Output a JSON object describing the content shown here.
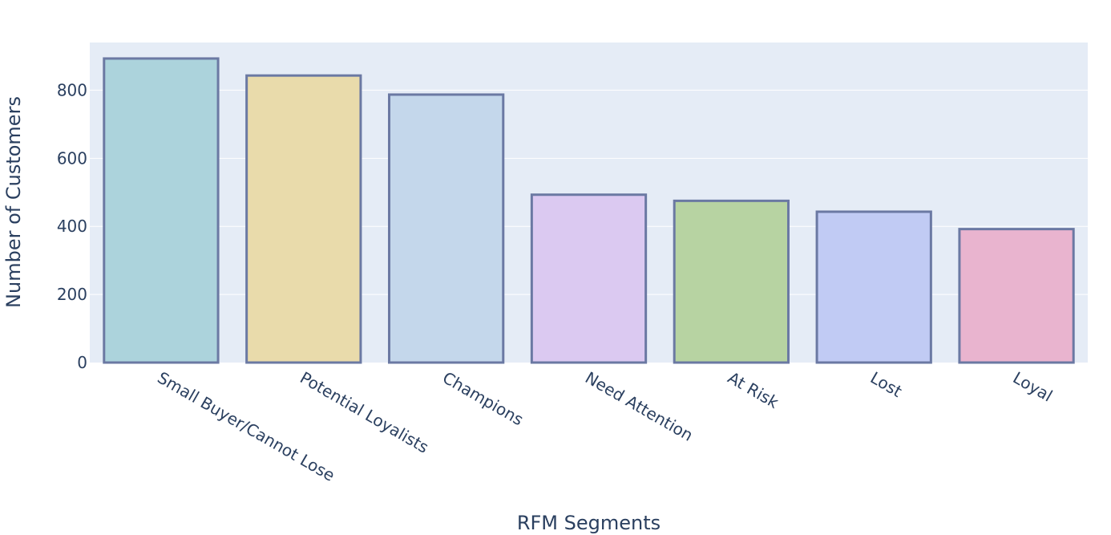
{
  "chart_data": {
    "type": "bar",
    "title": "",
    "xlabel": "RFM Segments",
    "ylabel": "Number of Customers",
    "categories": [
      "Small Buyer/Cannot Lose",
      "Potential Loyalists",
      "Champions",
      "Need Attention",
      "At Risk",
      "Lost",
      "Loyal"
    ],
    "values": [
      893,
      843,
      787,
      493,
      475,
      443,
      392
    ],
    "ylim": [
      0,
      940
    ],
    "yticks": [
      0,
      200,
      400,
      600,
      800
    ],
    "grid": true,
    "legend": "none",
    "colors": [
      "#acd3dc",
      "#e9dbab",
      "#c4d7eb",
      "#dbc9f1",
      "#b7d3a2",
      "#c1cbf4",
      "#e9b4cf"
    ],
    "bar_outline_color": "#6b79a3",
    "plot_background": "#e5ecf6",
    "gridline_color": "#ffffff",
    "text_color": "#2a3f5f"
  }
}
